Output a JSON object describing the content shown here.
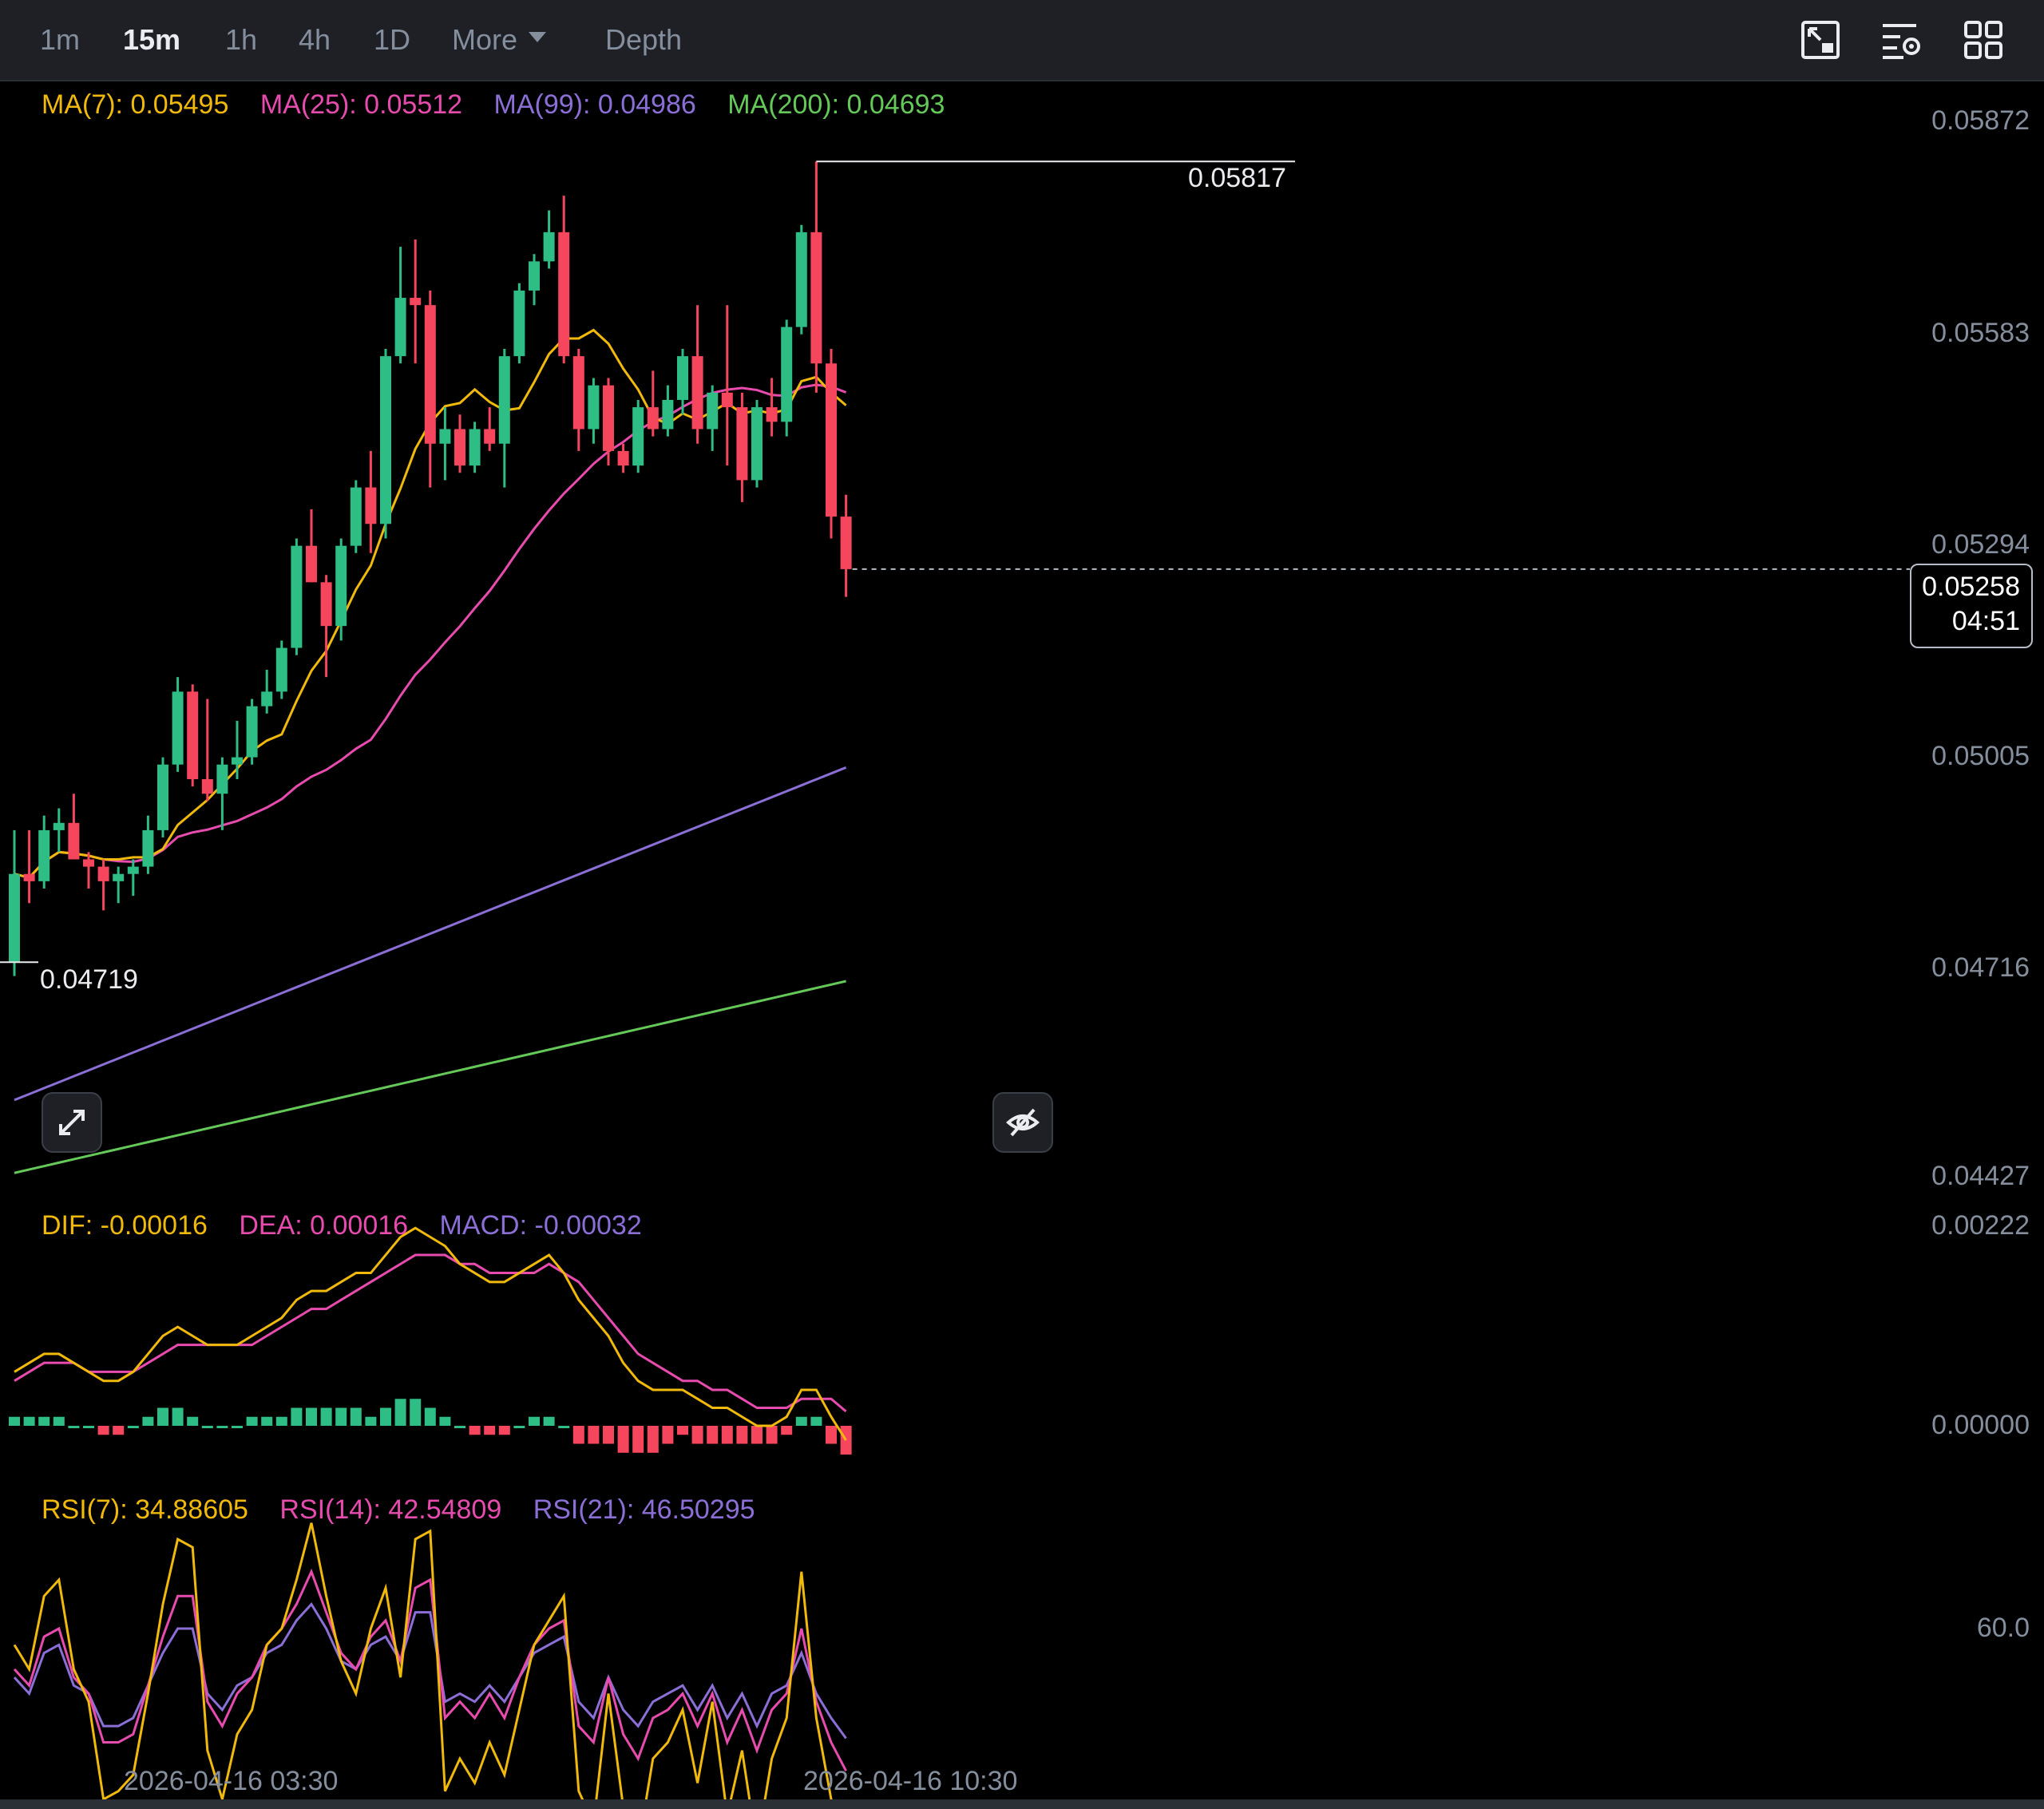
{
  "toolbar": {
    "timeframes": [
      "1m",
      "15m",
      "1h",
      "4h",
      "1D"
    ],
    "active_timeframe": "15m",
    "more_label": "More",
    "depth_label": "Depth",
    "icons": [
      "chart-type-icon",
      "indicator-settings-icon",
      "grid-layout-icon"
    ]
  },
  "ma_legend": {
    "ma7": "MA(7): 0.05495",
    "ma25": "MA(25): 0.05512",
    "ma99": "MA(99): 0.04986",
    "ma200": "MA(200): 0.04693"
  },
  "macd_legend": {
    "dif": "DIF: -0.00016",
    "dea": "DEA: 0.00016",
    "macd": "MACD: -0.00032"
  },
  "rsi_legend": {
    "rsi7": "RSI(7): 34.88605",
    "rsi14": "RSI(14): 42.54809",
    "rsi21": "RSI(21): 46.50295"
  },
  "price_axis": [
    "0.05872",
    "0.05583",
    "0.05294",
    "0.05005",
    "0.04716",
    "0.04427"
  ],
  "macd_axis": [
    "0.00222",
    "0.00000"
  ],
  "rsi_axis": [
    "60.0"
  ],
  "time_axis": [
    "2026-04-16 03:30",
    "2026-04-16 10:30"
  ],
  "current_price": {
    "price": "0.05258",
    "countdown": "04:51"
  },
  "annotations": {
    "high": "0.05817",
    "low": "0.04719"
  },
  "colors": {
    "up": "#2ebd85",
    "down": "#f6465d",
    "ma7": "#f0b90b",
    "ma25": "#e84bae",
    "ma99": "#8b6fd6",
    "ma200": "#64c958",
    "dif": "#f0b90b",
    "dea": "#e84bae",
    "macd_text": "#8b6fd6",
    "rsi7": "#f0b90b",
    "rsi14": "#e84bae",
    "rsi21": "#8b6fd6"
  },
  "chart_data": {
    "type": "candlestick",
    "interval": "15m",
    "candles": [
      {
        "o": 0.04719,
        "h": 0.049,
        "l": 0.047,
        "c": 0.0484
      },
      {
        "o": 0.0484,
        "h": 0.049,
        "l": 0.048,
        "c": 0.0483
      },
      {
        "o": 0.0483,
        "h": 0.0492,
        "l": 0.0482,
        "c": 0.049
      },
      {
        "o": 0.049,
        "h": 0.0493,
        "l": 0.0487,
        "c": 0.0491
      },
      {
        "o": 0.0491,
        "h": 0.0495,
        "l": 0.0486,
        "c": 0.0486
      },
      {
        "o": 0.0486,
        "h": 0.0487,
        "l": 0.0482,
        "c": 0.0485
      },
      {
        "o": 0.0485,
        "h": 0.0486,
        "l": 0.0479,
        "c": 0.0483
      },
      {
        "o": 0.0483,
        "h": 0.0485,
        "l": 0.048,
        "c": 0.0484
      },
      {
        "o": 0.0484,
        "h": 0.0486,
        "l": 0.0481,
        "c": 0.0485
      },
      {
        "o": 0.0485,
        "h": 0.0492,
        "l": 0.0484,
        "c": 0.049
      },
      {
        "o": 0.049,
        "h": 0.05,
        "l": 0.0489,
        "c": 0.0499
      },
      {
        "o": 0.0499,
        "h": 0.0511,
        "l": 0.0498,
        "c": 0.0509
      },
      {
        "o": 0.0509,
        "h": 0.051,
        "l": 0.0496,
        "c": 0.0497
      },
      {
        "o": 0.0497,
        "h": 0.0508,
        "l": 0.0494,
        "c": 0.0495
      },
      {
        "o": 0.0495,
        "h": 0.05,
        "l": 0.049,
        "c": 0.0499
      },
      {
        "o": 0.0499,
        "h": 0.0505,
        "l": 0.0497,
        "c": 0.05
      },
      {
        "o": 0.05,
        "h": 0.0508,
        "l": 0.0499,
        "c": 0.0507
      },
      {
        "o": 0.0507,
        "h": 0.0512,
        "l": 0.0506,
        "c": 0.0509
      },
      {
        "o": 0.0509,
        "h": 0.0516,
        "l": 0.0508,
        "c": 0.0515
      },
      {
        "o": 0.0515,
        "h": 0.053,
        "l": 0.0514,
        "c": 0.0529
      },
      {
        "o": 0.0529,
        "h": 0.0534,
        "l": 0.0524,
        "c": 0.0524
      },
      {
        "o": 0.0524,
        "h": 0.0525,
        "l": 0.0511,
        "c": 0.0518
      },
      {
        "o": 0.0518,
        "h": 0.053,
        "l": 0.0516,
        "c": 0.0529
      },
      {
        "o": 0.0529,
        "h": 0.0538,
        "l": 0.0528,
        "c": 0.0537
      },
      {
        "o": 0.0537,
        "h": 0.0542,
        "l": 0.0528,
        "c": 0.0532
      },
      {
        "o": 0.0532,
        "h": 0.0556,
        "l": 0.053,
        "c": 0.0555
      },
      {
        "o": 0.0555,
        "h": 0.057,
        "l": 0.0554,
        "c": 0.0563
      },
      {
        "o": 0.0563,
        "h": 0.0571,
        "l": 0.0554,
        "c": 0.0562
      },
      {
        "o": 0.0562,
        "h": 0.0564,
        "l": 0.0537,
        "c": 0.0543
      },
      {
        "o": 0.0543,
        "h": 0.0548,
        "l": 0.0538,
        "c": 0.0545
      },
      {
        "o": 0.0545,
        "h": 0.0547,
        "l": 0.0539,
        "c": 0.054
      },
      {
        "o": 0.054,
        "h": 0.0546,
        "l": 0.0539,
        "c": 0.0545
      },
      {
        "o": 0.0545,
        "h": 0.0548,
        "l": 0.0542,
        "c": 0.0543
      },
      {
        "o": 0.0543,
        "h": 0.0556,
        "l": 0.0537,
        "c": 0.0555
      },
      {
        "o": 0.0555,
        "h": 0.0565,
        "l": 0.0554,
        "c": 0.0564
      },
      {
        "o": 0.0564,
        "h": 0.0569,
        "l": 0.0562,
        "c": 0.0568
      },
      {
        "o": 0.0568,
        "h": 0.0575,
        "l": 0.0567,
        "c": 0.0572
      },
      {
        "o": 0.0572,
        "h": 0.0577,
        "l": 0.0554,
        "c": 0.0555
      },
      {
        "o": 0.0555,
        "h": 0.0556,
        "l": 0.0542,
        "c": 0.0545
      },
      {
        "o": 0.0545,
        "h": 0.0552,
        "l": 0.0543,
        "c": 0.0551
      },
      {
        "o": 0.0551,
        "h": 0.0552,
        "l": 0.054,
        "c": 0.0542
      },
      {
        "o": 0.0542,
        "h": 0.0543,
        "l": 0.0539,
        "c": 0.054
      },
      {
        "o": 0.054,
        "h": 0.0549,
        "l": 0.0539,
        "c": 0.0548
      },
      {
        "o": 0.0548,
        "h": 0.0553,
        "l": 0.0544,
        "c": 0.0545
      },
      {
        "o": 0.0545,
        "h": 0.0551,
        "l": 0.0544,
        "c": 0.0549
      },
      {
        "o": 0.0549,
        "h": 0.0556,
        "l": 0.0547,
        "c": 0.0555
      },
      {
        "o": 0.0555,
        "h": 0.0562,
        "l": 0.0543,
        "c": 0.0545
      },
      {
        "o": 0.0545,
        "h": 0.0551,
        "l": 0.0542,
        "c": 0.055
      },
      {
        "o": 0.055,
        "h": 0.0562,
        "l": 0.054,
        "c": 0.0548
      },
      {
        "o": 0.0548,
        "h": 0.055,
        "l": 0.0535,
        "c": 0.0538
      },
      {
        "o": 0.0538,
        "h": 0.0549,
        "l": 0.0537,
        "c": 0.0548
      },
      {
        "o": 0.0548,
        "h": 0.0552,
        "l": 0.0544,
        "c": 0.0546
      },
      {
        "o": 0.0546,
        "h": 0.056,
        "l": 0.0544,
        "c": 0.0559
      },
      {
        "o": 0.0559,
        "h": 0.0573,
        "l": 0.0558,
        "c": 0.0572
      },
      {
        "o": 0.0572,
        "h": 0.05817,
        "l": 0.055,
        "c": 0.0554
      },
      {
        "o": 0.0554,
        "h": 0.0556,
        "l": 0.053,
        "c": 0.0533
      },
      {
        "o": 0.0533,
        "h": 0.0536,
        "l": 0.0522,
        "c": 0.05258
      }
    ],
    "ma": {
      "ma7_final": 0.05495,
      "ma25_final": 0.05512,
      "ma99_final": 0.04986,
      "ma200_final": 0.04693,
      "ma99_start": 0.0453,
      "ma200_start": 0.0443
    },
    "ylim": [
      0.04427,
      0.05872
    ],
    "high_annotation": 0.05817,
    "low_annotation": 0.04719,
    "current_price": 0.05258,
    "macd": {
      "dif": [
        0.0006,
        0.0007,
        0.0008,
        0.0008,
        0.0007,
        0.0006,
        0.0005,
        0.0005,
        0.0006,
        0.0008,
        0.001,
        0.0011,
        0.001,
        0.0009,
        0.0009,
        0.0009,
        0.001,
        0.0011,
        0.0012,
        0.0014,
        0.0015,
        0.0015,
        0.0016,
        0.0017,
        0.0017,
        0.0019,
        0.0021,
        0.0022,
        0.0021,
        0.002,
        0.0018,
        0.0017,
        0.0016,
        0.0016,
        0.0017,
        0.0018,
        0.0019,
        0.0017,
        0.0014,
        0.0012,
        0.001,
        0.0007,
        0.0005,
        0.0004,
        0.0004,
        0.0004,
        0.0003,
        0.0002,
        0.0002,
        0.0001,
        0.0,
        0.0,
        0.0001,
        0.0004,
        0.0004,
        0.0001,
        -0.00016
      ],
      "dea": [
        0.0005,
        0.0006,
        0.0007,
        0.0007,
        0.0007,
        0.0006,
        0.0006,
        0.0006,
        0.0006,
        0.0007,
        0.0008,
        0.0009,
        0.0009,
        0.0009,
        0.0009,
        0.0009,
        0.0009,
        0.001,
        0.0011,
        0.0012,
        0.0013,
        0.0013,
        0.0014,
        0.0015,
        0.0016,
        0.0017,
        0.0018,
        0.0019,
        0.0019,
        0.0019,
        0.0018,
        0.0018,
        0.0017,
        0.0017,
        0.0017,
        0.0017,
        0.0018,
        0.0017,
        0.0016,
        0.0014,
        0.0012,
        0.001,
        0.0008,
        0.0007,
        0.0006,
        0.0005,
        0.0005,
        0.0004,
        0.0004,
        0.0003,
        0.0002,
        0.0002,
        0.0002,
        0.0003,
        0.0003,
        0.0003,
        0.00016
      ]
    },
    "rsi": {
      "rsi7": [
        58,
        55,
        64,
        66,
        55,
        51,
        39,
        40,
        42,
        52,
        63,
        71,
        70,
        45,
        39,
        47,
        50,
        58,
        60,
        66,
        73,
        64,
        56,
        52,
        60,
        65,
        54,
        71,
        72,
        40,
        44,
        41,
        46,
        42,
        50,
        58,
        61,
        64,
        40,
        36,
        52,
        38,
        33,
        44,
        46,
        50,
        41,
        51,
        37,
        45,
        33,
        44,
        49,
        67,
        49,
        39,
        34.9
      ],
      "rsi14": [
        55,
        53,
        59,
        60,
        54,
        52,
        46,
        46,
        47,
        53,
        59,
        64,
        64,
        51,
        48,
        52,
        54,
        58,
        60,
        63,
        67,
        62,
        57,
        55,
        59,
        61,
        56,
        65,
        66,
        49,
        51,
        49,
        52,
        49,
        54,
        58,
        60,
        61,
        48,
        46,
        54,
        47,
        44,
        49,
        50,
        52,
        48,
        52,
        46,
        50,
        45,
        50,
        52,
        60,
        51,
        46,
        42.5
      ],
      "rsi21": [
        54,
        52,
        57,
        58,
        53,
        52,
        48,
        48,
        49,
        53,
        57,
        60,
        60,
        52,
        50,
        53,
        54,
        57,
        58,
        61,
        63,
        60,
        56,
        55,
        58,
        59,
        56,
        62,
        62,
        51,
        52,
        51,
        53,
        51,
        54,
        57,
        58,
        59,
        51,
        49,
        54,
        50,
        48,
        51,
        52,
        53,
        50,
        53,
        49,
        52,
        48,
        52,
        53,
        57,
        52,
        49,
        46.5
      ]
    },
    "rsi_ylim": [
      30,
      85
    ],
    "time_labels": [
      "2026-04-16 03:30",
      "2026-04-16 10:30"
    ]
  }
}
